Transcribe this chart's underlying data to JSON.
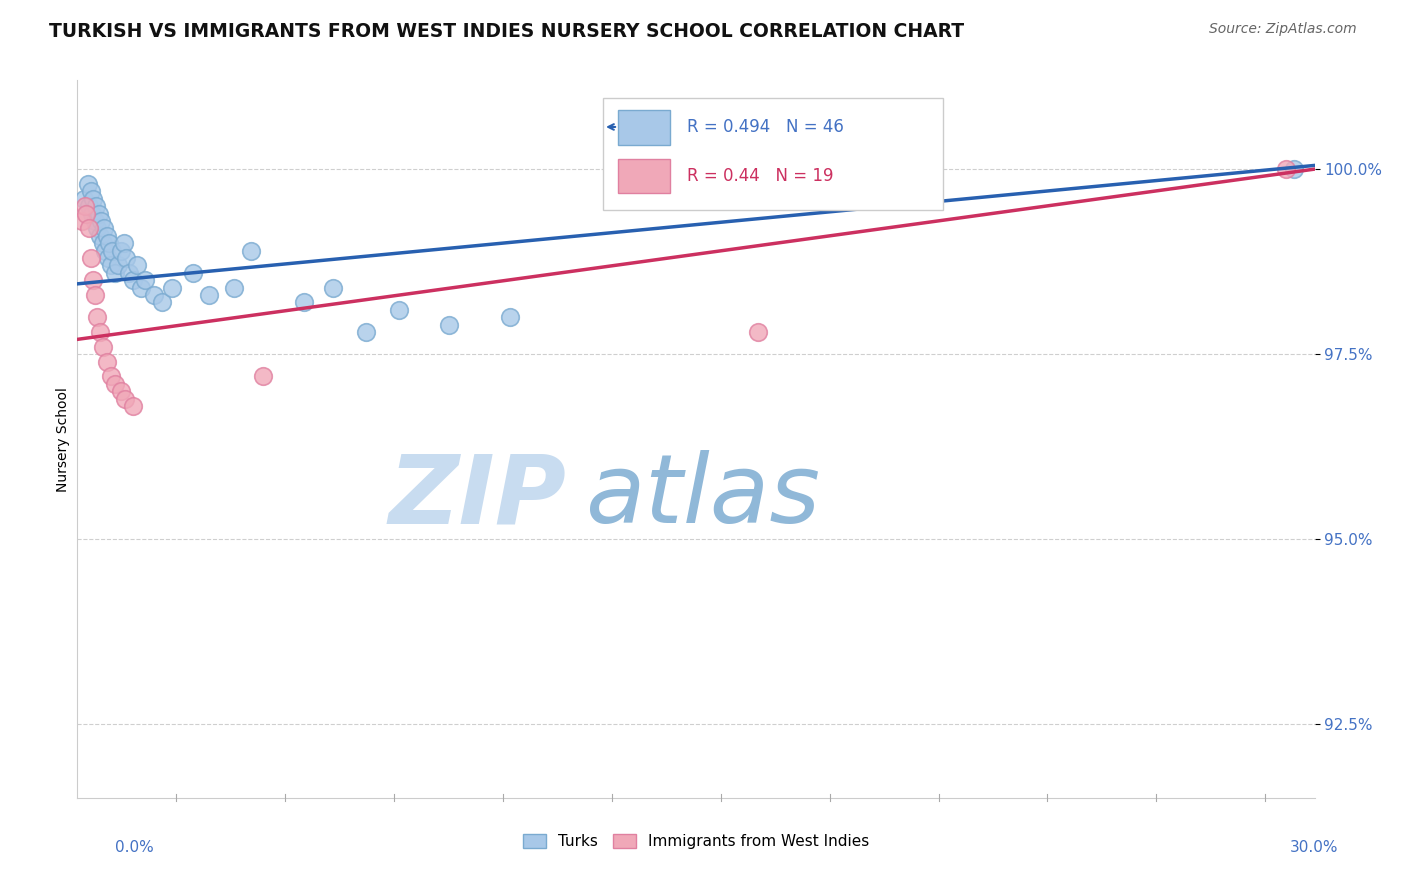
{
  "title": "TURKISH VS IMMIGRANTS FROM WEST INDIES NURSERY SCHOOL CORRELATION CHART",
  "source": "Source: ZipAtlas.com",
  "ylabel": "Nursery School",
  "xmin": 0.0,
  "xmax": 30.0,
  "ymin": 91.5,
  "ymax": 101.2,
  "yticks": [
    100.0,
    97.5,
    95.0,
    92.5
  ],
  "ytick_labels": [
    "100.0%",
    "97.5%",
    "95.0%",
    "92.5%"
  ],
  "blue_fill_color": "#A8C8E8",
  "blue_edge_color": "#7AAAD0",
  "pink_fill_color": "#F0A8B8",
  "pink_edge_color": "#E080A0",
  "blue_line_color": "#2860B0",
  "pink_line_color": "#CC3060",
  "R_blue": 0.494,
  "N_blue": 46,
  "R_pink": 0.44,
  "N_pink": 19,
  "legend_label_blue": "Turks",
  "legend_label_pink": "Immigrants from West Indies",
  "blue_dots_x": [
    0.15,
    0.25,
    0.28,
    0.32,
    0.35,
    0.38,
    0.42,
    0.45,
    0.48,
    0.52,
    0.55,
    0.58,
    0.62,
    0.65,
    0.68,
    0.72,
    0.75,
    0.78,
    0.82,
    0.85,
    0.92,
    0.98,
    1.05,
    1.12,
    1.18,
    1.25,
    1.35,
    1.45,
    1.55,
    1.65,
    1.85,
    2.05,
    2.3,
    2.8,
    3.2,
    3.8,
    4.2,
    5.5,
    6.2,
    7.0,
    7.8,
    9.0,
    10.5,
    16.0,
    18.5,
    29.5
  ],
  "blue_dots_y": [
    99.6,
    99.8,
    99.5,
    99.7,
    99.4,
    99.6,
    99.3,
    99.5,
    99.2,
    99.4,
    99.1,
    99.3,
    99.0,
    99.2,
    98.9,
    99.1,
    98.8,
    99.0,
    98.7,
    98.9,
    98.6,
    98.7,
    98.9,
    99.0,
    98.8,
    98.6,
    98.5,
    98.7,
    98.4,
    98.5,
    98.3,
    98.2,
    98.4,
    98.6,
    98.3,
    98.4,
    98.9,
    98.2,
    98.4,
    97.8,
    98.1,
    97.9,
    98.0,
    99.7,
    99.9,
    100.0
  ],
  "pink_dots_x": [
    0.12,
    0.18,
    0.22,
    0.28,
    0.32,
    0.38,
    0.42,
    0.48,
    0.55,
    0.62,
    0.72,
    0.82,
    0.92,
    1.05,
    1.15,
    1.35,
    4.5,
    16.5,
    29.3
  ],
  "pink_dots_y": [
    99.3,
    99.5,
    99.4,
    99.2,
    98.8,
    98.5,
    98.3,
    98.0,
    97.8,
    97.6,
    97.4,
    97.2,
    97.1,
    97.0,
    96.9,
    96.8,
    97.2,
    97.8,
    100.0
  ],
  "blue_line_x0": 0.0,
  "blue_line_y0": 98.45,
  "blue_line_x1": 30.0,
  "blue_line_y1": 100.05,
  "pink_line_x0": 0.0,
  "pink_line_y0": 97.7,
  "pink_line_x1": 30.0,
  "pink_line_y1": 100.0,
  "watermark_zip": "ZIP",
  "watermark_atlas": "atlas",
  "watermark_color_zip": "#C8DCF0",
  "watermark_color_atlas": "#90B8D8",
  "bg_color": "#FFFFFF",
  "grid_color": "#BBBBBB",
  "tick_label_color": "#4472C4",
  "title_color": "#111111",
  "title_fontsize": 13.5,
  "axis_label_fontsize": 10,
  "tick_fontsize": 11,
  "source_fontsize": 10,
  "legend_r_blue_color": "#4472C4",
  "legend_r_pink_color": "#CC3060",
  "dot_size": 160
}
